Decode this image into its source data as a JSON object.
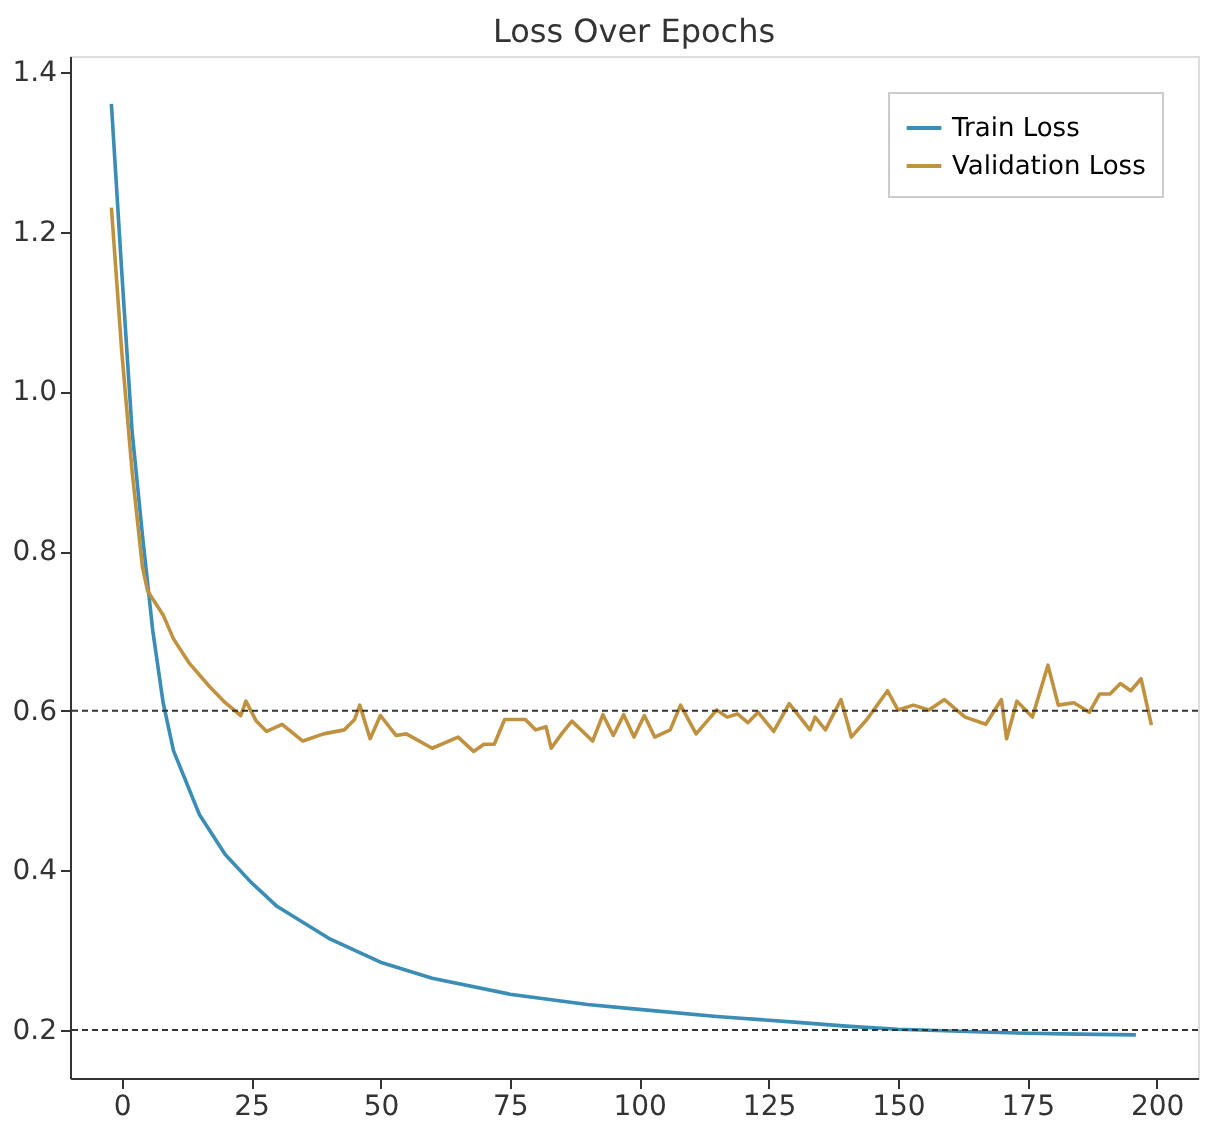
{
  "chart_data": {
    "type": "line",
    "title": "Loss Over Epochs",
    "xlim": [
      -10,
      208
    ],
    "xticks": [
      0,
      25,
      50,
      75,
      100,
      125,
      150,
      175,
      200
    ],
    "ylim": [
      0.14,
      1.42
    ],
    "yticks": [
      0.2,
      0.4,
      0.6,
      0.8,
      {
        "value": 1,
        "label": "1.0"
      },
      1.2,
      1.4
    ],
    "grid": false,
    "legend": "top right",
    "marker": "none",
    "line_style": "solid",
    "series": [
      {
        "name": "Train Loss",
        "color": "#3a8db5",
        "x": [
          -2,
          0,
          2,
          4,
          6,
          8,
          10,
          15,
          20,
          25,
          30,
          40,
          50,
          60,
          75,
          90,
          100,
          115,
          130,
          140,
          150,
          165,
          175,
          185,
          196
        ],
        "values": [
          1.36,
          1.15,
          0.95,
          0.82,
          0.7,
          0.61,
          0.55,
          0.47,
          0.42,
          0.385,
          0.355,
          0.315,
          0.285,
          0.265,
          0.245,
          0.232,
          0.226,
          0.217,
          0.21,
          0.205,
          0.201,
          0.198,
          0.196,
          0.195,
          0.194
        ]
      },
      {
        "name": "Validation Loss",
        "color": "#c0923f",
        "x": [
          -2,
          0,
          2,
          4,
          5,
          8,
          10,
          13,
          17,
          20,
          23,
          24,
          26,
          28,
          31,
          35,
          39,
          43,
          45,
          46,
          48,
          50,
          53,
          55,
          60,
          65,
          68,
          70,
          72,
          74,
          78,
          80,
          82,
          83,
          85,
          87,
          91,
          93,
          95,
          97,
          99,
          101,
          103,
          106,
          108,
          111,
          115,
          117,
          119,
          121,
          123,
          126,
          129,
          133,
          134,
          136,
          139,
          141,
          144,
          148,
          150,
          153,
          156,
          159,
          163,
          167,
          170,
          171,
          173,
          176,
          179,
          181,
          184,
          187,
          189,
          191,
          193,
          195,
          197,
          199
        ],
        "values": [
          1.23,
          1.05,
          0.9,
          0.78,
          0.75,
          0.72,
          0.69,
          0.66,
          0.63,
          0.61,
          0.594,
          0.612,
          0.587,
          0.574,
          0.583,
          0.562,
          0.571,
          0.576,
          0.589,
          0.607,
          0.565,
          0.594,
          0.569,
          0.571,
          0.553,
          0.567,
          0.549,
          0.558,
          0.558,
          0.589,
          0.589,
          0.576,
          0.58,
          0.553,
          0.571,
          0.587,
          0.562,
          0.595,
          0.569,
          0.595,
          0.567,
          0.594,
          0.567,
          0.576,
          0.607,
          0.571,
          0.601,
          0.592,
          0.596,
          0.585,
          0.598,
          0.574,
          0.609,
          0.576,
          0.592,
          0.576,
          0.614,
          0.567,
          0.589,
          0.625,
          0.601,
          0.607,
          0.601,
          0.614,
          0.592,
          0.583,
          0.614,
          0.565,
          0.612,
          0.592,
          0.657,
          0.607,
          0.61,
          0.598,
          0.621,
          0.621,
          0.634,
          0.625,
          0.64,
          0.582
        ]
      }
    ],
    "ref_lines": [
      {
        "axis": "y",
        "value": 0.6,
        "color": "#333333",
        "line_style": "dashed"
      },
      {
        "axis": "y",
        "value": 0.2,
        "color": "#333333",
        "line_style": "dashed"
      }
    ]
  }
}
